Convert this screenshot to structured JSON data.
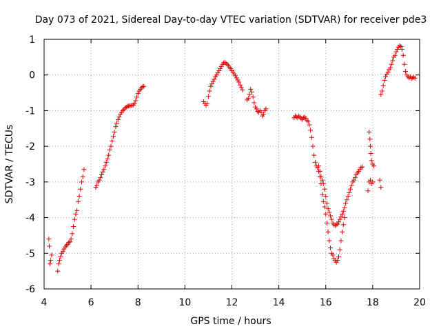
{
  "chart_data": {
    "type": "scatter",
    "title": "Day 073 of 2021, Sidereal Day-to-day VTEC variation (SDTVAR) for receiver pde3",
    "xlabel": "GPS time / hours",
    "ylabel": "SDTVAR / TECUs",
    "xlim": [
      4,
      20
    ],
    "ylim": [
      -6,
      1
    ],
    "xticks": [
      4,
      6,
      8,
      10,
      12,
      14,
      16,
      18,
      20
    ],
    "yticks": [
      -6,
      -5,
      -4,
      -3,
      -2,
      -1,
      0,
      1
    ],
    "xtick_labels": [
      "4",
      "6",
      "8",
      "10",
      "12",
      "14",
      "16",
      "18",
      "20"
    ],
    "ytick_labels": [
      "-6",
      "-5",
      "-4",
      "-3",
      "-2",
      "-1",
      "0",
      "1"
    ],
    "grid": true,
    "marker": "+",
    "color": "#e00000",
    "series": [
      {
        "name": "seg1",
        "points": [
          [
            4.2,
            -4.6
          ],
          [
            4.22,
            -4.8
          ],
          [
            4.25,
            -5.3
          ],
          [
            4.28,
            -5.2
          ],
          [
            4.32,
            -5.05
          ]
        ]
      },
      {
        "name": "seg2",
        "points": [
          [
            4.58,
            -5.5
          ],
          [
            4.62,
            -5.3
          ],
          [
            4.66,
            -5.2
          ],
          [
            4.7,
            -5.1
          ],
          [
            4.75,
            -5.0
          ],
          [
            4.8,
            -4.95
          ],
          [
            4.85,
            -4.88
          ],
          [
            4.9,
            -4.82
          ],
          [
            4.95,
            -4.78
          ],
          [
            5.0,
            -4.75
          ],
          [
            5.05,
            -4.7
          ],
          [
            5.1,
            -4.68
          ],
          [
            5.15,
            -4.6
          ],
          [
            5.2,
            -4.45
          ],
          [
            5.25,
            -4.25
          ],
          [
            5.3,
            -4.05
          ],
          [
            5.35,
            -3.9
          ],
          [
            5.4,
            -3.8
          ],
          [
            5.45,
            -3.55
          ],
          [
            5.5,
            -3.4
          ],
          [
            5.55,
            -3.2
          ],
          [
            5.6,
            -3.0
          ],
          [
            5.65,
            -2.85
          ],
          [
            5.7,
            -2.65
          ]
        ]
      },
      {
        "name": "seg3",
        "points": [
          [
            6.2,
            -3.15
          ],
          [
            6.25,
            -3.1
          ],
          [
            6.3,
            -3.0
          ],
          [
            6.35,
            -2.95
          ],
          [
            6.4,
            -2.88
          ],
          [
            6.45,
            -2.8
          ],
          [
            6.5,
            -2.72
          ],
          [
            6.55,
            -2.65
          ],
          [
            6.6,
            -2.55
          ],
          [
            6.65,
            -2.45
          ],
          [
            6.7,
            -2.35
          ],
          [
            6.75,
            -2.25
          ],
          [
            6.8,
            -2.1
          ],
          [
            6.85,
            -2.0
          ],
          [
            6.9,
            -1.85
          ],
          [
            6.95,
            -1.72
          ],
          [
            7.0,
            -1.6
          ],
          [
            7.05,
            -1.45
          ],
          [
            7.1,
            -1.35
          ],
          [
            7.15,
            -1.25
          ],
          [
            7.2,
            -1.18
          ],
          [
            7.25,
            -1.1
          ],
          [
            7.3,
            -1.05
          ],
          [
            7.35,
            -1.0
          ],
          [
            7.4,
            -0.97
          ],
          [
            7.45,
            -0.93
          ],
          [
            7.5,
            -0.9
          ],
          [
            7.55,
            -0.88
          ],
          [
            7.6,
            -0.87
          ],
          [
            7.65,
            -0.86
          ],
          [
            7.7,
            -0.86
          ],
          [
            7.75,
            -0.85
          ],
          [
            7.8,
            -0.84
          ],
          [
            7.85,
            -0.8
          ],
          [
            7.9,
            -0.72
          ],
          [
            7.95,
            -0.62
          ],
          [
            8.0,
            -0.52
          ],
          [
            8.05,
            -0.45
          ],
          [
            8.1,
            -0.4
          ],
          [
            8.15,
            -0.36
          ],
          [
            8.2,
            -0.33
          ],
          [
            8.25,
            -0.32
          ]
        ]
      },
      {
        "name": "seg4",
        "points": [
          [
            10.8,
            -0.75
          ],
          [
            10.85,
            -0.8
          ],
          [
            10.9,
            -0.85
          ],
          [
            10.95,
            -0.8
          ],
          [
            11.0,
            -0.6
          ],
          [
            11.05,
            -0.45
          ],
          [
            11.1,
            -0.32
          ],
          [
            11.15,
            -0.25
          ],
          [
            11.2,
            -0.18
          ],
          [
            11.25,
            -0.12
          ],
          [
            11.3,
            -0.05
          ],
          [
            11.35,
            0.0
          ],
          [
            11.4,
            0.06
          ],
          [
            11.45,
            0.12
          ],
          [
            11.5,
            0.18
          ],
          [
            11.55,
            0.24
          ],
          [
            11.6,
            0.3
          ],
          [
            11.65,
            0.34
          ],
          [
            11.7,
            0.35
          ],
          [
            11.75,
            0.33
          ],
          [
            11.8,
            0.3
          ],
          [
            11.85,
            0.26
          ],
          [
            11.9,
            0.22
          ],
          [
            11.95,
            0.18
          ],
          [
            12.0,
            0.12
          ],
          [
            12.05,
            0.08
          ],
          [
            12.1,
            0.03
          ],
          [
            12.15,
            -0.02
          ],
          [
            12.2,
            -0.08
          ],
          [
            12.25,
            -0.14
          ],
          [
            12.3,
            -0.2
          ],
          [
            12.35,
            -0.28
          ],
          [
            12.4,
            -0.35
          ],
          [
            12.45,
            -0.42
          ]
        ]
      },
      {
        "name": "seg5",
        "points": [
          [
            12.65,
            -0.7
          ],
          [
            12.7,
            -0.65
          ],
          [
            12.75,
            -0.55
          ],
          [
            12.8,
            -0.4
          ],
          [
            12.85,
            -0.48
          ],
          [
            12.9,
            -0.62
          ],
          [
            12.95,
            -0.78
          ],
          [
            13.0,
            -0.9
          ],
          [
            13.05,
            -0.95
          ],
          [
            13.1,
            -1.02
          ],
          [
            13.15,
            -1.05
          ],
          [
            13.2,
            -1.0
          ],
          [
            13.25,
            -1.05
          ],
          [
            13.3,
            -1.15
          ],
          [
            13.35,
            -1.1
          ],
          [
            13.4,
            -1.0
          ],
          [
            13.45,
            -0.95
          ]
        ]
      },
      {
        "name": "seg6",
        "points": [
          [
            14.65,
            -1.2
          ],
          [
            14.7,
            -1.15
          ],
          [
            14.75,
            -1.18
          ],
          [
            14.8,
            -1.2
          ],
          [
            14.85,
            -1.15
          ],
          [
            14.9,
            -1.18
          ],
          [
            14.95,
            -1.22
          ],
          [
            15.0,
            -1.25
          ],
          [
            15.05,
            -1.2
          ],
          [
            15.1,
            -1.18
          ],
          [
            15.15,
            -1.22
          ],
          [
            15.2,
            -1.28
          ],
          [
            15.25,
            -1.3
          ],
          [
            15.3,
            -1.4
          ],
          [
            15.35,
            -1.55
          ],
          [
            15.4,
            -1.75
          ],
          [
            15.45,
            -2.0
          ],
          [
            15.5,
            -2.25
          ],
          [
            15.55,
            -2.45
          ],
          [
            15.6,
            -2.55
          ],
          [
            15.65,
            -2.6
          ],
          [
            15.7,
            -2.7
          ],
          [
            15.75,
            -2.85
          ],
          [
            15.8,
            -3.05
          ],
          [
            15.85,
            -3.35
          ],
          [
            15.9,
            -3.55
          ],
          [
            15.95,
            -3.7
          ],
          [
            16.0,
            -3.9
          ],
          [
            16.05,
            -4.15
          ],
          [
            16.1,
            -4.4
          ],
          [
            16.15,
            -4.65
          ],
          [
            16.2,
            -4.85
          ],
          [
            16.25,
            -5.0
          ],
          [
            16.3,
            -5.05
          ],
          [
            16.35,
            -5.15
          ],
          [
            16.4,
            -5.2
          ],
          [
            16.45,
            -5.25
          ],
          [
            16.5,
            -5.2
          ],
          [
            16.55,
            -5.1
          ],
          [
            16.6,
            -4.9
          ],
          [
            16.65,
            -4.65
          ],
          [
            16.7,
            -4.4
          ],
          [
            16.75,
            -4.2
          ],
          [
            16.8,
            -4.0
          ]
        ]
      },
      {
        "name": "seg7",
        "points": [
          [
            15.7,
            -2.55
          ],
          [
            15.75,
            -2.7
          ],
          [
            15.8,
            -2.85
          ],
          [
            15.85,
            -2.95
          ],
          [
            15.9,
            -3.05
          ],
          [
            15.95,
            -3.2
          ],
          [
            16.0,
            -3.4
          ],
          [
            16.05,
            -3.6
          ],
          [
            16.1,
            -3.75
          ],
          [
            16.15,
            -3.85
          ],
          [
            16.2,
            -3.95
          ],
          [
            16.25,
            -4.05
          ],
          [
            16.3,
            -4.15
          ],
          [
            16.35,
            -4.2
          ],
          [
            16.4,
            -4.22
          ],
          [
            16.45,
            -4.2
          ],
          [
            16.5,
            -4.18
          ],
          [
            16.55,
            -4.12
          ],
          [
            16.6,
            -4.05
          ],
          [
            16.65,
            -3.98
          ],
          [
            16.7,
            -3.9
          ],
          [
            16.75,
            -3.82
          ],
          [
            16.8,
            -3.72
          ],
          [
            16.85,
            -3.6
          ],
          [
            16.9,
            -3.5
          ],
          [
            16.95,
            -3.4
          ],
          [
            17.0,
            -3.3
          ],
          [
            17.05,
            -3.2
          ],
          [
            17.1,
            -3.1
          ],
          [
            17.15,
            -3.0
          ],
          [
            17.2,
            -2.95
          ],
          [
            17.25,
            -2.88
          ],
          [
            17.3,
            -2.8
          ],
          [
            17.35,
            -2.75
          ],
          [
            17.4,
            -2.7
          ],
          [
            17.45,
            -2.65
          ],
          [
            17.5,
            -2.6
          ],
          [
            17.55,
            -2.58
          ]
        ]
      },
      {
        "name": "seg8",
        "points": [
          [
            17.8,
            -3.25
          ],
          [
            17.85,
            -3.0
          ],
          [
            17.9,
            -2.95
          ],
          [
            17.95,
            -3.05
          ],
          [
            18.0,
            -3.0
          ],
          [
            17.85,
            -1.6
          ],
          [
            17.88,
            -1.8
          ],
          [
            17.9,
            -2.0
          ],
          [
            17.92,
            -2.2
          ],
          [
            17.95,
            -2.4
          ],
          [
            18.0,
            -2.5
          ],
          [
            18.05,
            -2.55
          ],
          [
            18.3,
            -2.95
          ],
          [
            18.35,
            -3.15
          ]
        ]
      },
      {
        "name": "seg9",
        "points": [
          [
            18.35,
            -0.55
          ],
          [
            18.4,
            -0.45
          ],
          [
            18.45,
            -0.3
          ],
          [
            18.5,
            -0.15
          ],
          [
            18.55,
            -0.05
          ],
          [
            18.6,
            0.02
          ],
          [
            18.65,
            0.08
          ],
          [
            18.7,
            0.15
          ],
          [
            18.75,
            0.2
          ],
          [
            18.8,
            0.3
          ],
          [
            18.85,
            0.4
          ],
          [
            18.9,
            0.5
          ],
          [
            18.95,
            0.55
          ],
          [
            19.0,
            0.65
          ],
          [
            19.05,
            0.72
          ],
          [
            19.1,
            0.78
          ],
          [
            19.15,
            0.82
          ],
          [
            19.2,
            0.8
          ],
          [
            19.25,
            0.72
          ],
          [
            19.3,
            0.55
          ],
          [
            19.35,
            0.3
          ],
          [
            19.4,
            0.1
          ],
          [
            19.45,
            0.0
          ],
          [
            19.5,
            -0.05
          ],
          [
            19.55,
            -0.08
          ],
          [
            19.6,
            -0.05
          ],
          [
            19.65,
            -0.1
          ],
          [
            19.7,
            -0.08
          ],
          [
            19.75,
            -0.06
          ],
          [
            19.8,
            -0.09
          ]
        ]
      }
    ]
  }
}
